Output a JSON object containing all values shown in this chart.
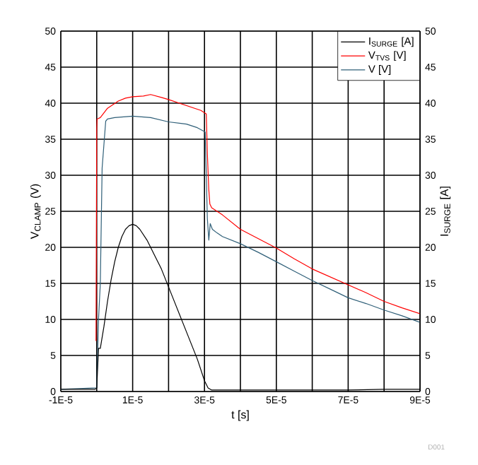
{
  "chart_data": {
    "type": "line",
    "xlabel": "t [s]",
    "ylabel": "V$_{CLAMP}$ (V)",
    "y2label": "I$_{SURGE}$ [A]",
    "annotations": [
      "D001"
    ],
    "xlim": [
      -1e-05,
      9e-05
    ],
    "ylim": [
      0,
      50
    ],
    "y2lim": [
      0,
      50
    ],
    "xticks": [
      {
        "value": -1e-05,
        "label": "-1E-5"
      },
      {
        "value": 0,
        "label": null
      },
      {
        "value": 1e-05,
        "label": "1E-5"
      },
      {
        "value": 2e-05,
        "label": null
      },
      {
        "value": 3e-05,
        "label": "3E-5"
      },
      {
        "value": 4e-05,
        "label": null
      },
      {
        "value": 5e-05,
        "label": "5E-5"
      },
      {
        "value": 6e-05,
        "label": null
      },
      {
        "value": 7e-05,
        "label": "7E-5"
      },
      {
        "value": 8e-05,
        "label": null
      },
      {
        "value": 9e-05,
        "label": "9E-5"
      }
    ],
    "yticks": [
      0,
      5,
      10,
      15,
      20,
      25,
      30,
      35,
      40,
      45,
      50
    ],
    "y2ticks": [
      0,
      5,
      10,
      15,
      20,
      25,
      30,
      35,
      40,
      45,
      50
    ],
    "grid": true,
    "legend": "top right",
    "line_style": "solid",
    "marker": "none",
    "series": [
      {
        "name": "I$_{SURGE}$ [A]",
        "color": "#000000",
        "axis": "y2",
        "x": [
          -1e-05,
          -5e-07,
          0,
          5e-07,
          1e-06,
          2e-06,
          3e-06,
          4e-06,
          5e-06,
          6e-06,
          7e-06,
          8e-06,
          9e-06,
          1e-05,
          1.1e-05,
          1.2e-05,
          1.4e-05,
          1.6e-05,
          1.8e-05,
          2e-05,
          2.2e-05,
          2.4e-05,
          2.6e-05,
          2.8e-05,
          3e-05,
          3.1e-05,
          3.2e-05,
          4e-05,
          5e-05,
          6e-05,
          7e-05,
          8e-05,
          9e-05
        ],
        "values": [
          0.3,
          0.3,
          0.5,
          6,
          6,
          9,
          12.5,
          15.5,
          18,
          20,
          21.5,
          22.5,
          23,
          23.2,
          23,
          22.5,
          21,
          19,
          17,
          14.5,
          12,
          9.5,
          7,
          4.5,
          1.5,
          0.5,
          0.2,
          0.2,
          0.2,
          0.2,
          0.2,
          0.3,
          0.3
        ]
      },
      {
        "name": "V$_{TVS}$ [V]",
        "color": "#ff0000",
        "x": [
          -2e-07,
          0,
          1e-07,
          1e-06,
          3e-06,
          6e-06,
          8e-06,
          1e-05,
          1.3e-05,
          1.5e-05,
          1.8e-05,
          2e-05,
          2.3e-05,
          2.6e-05,
          2.9e-05,
          3.05e-05,
          3.08e-05,
          3.12e-05,
          3.15e-05,
          3.2e-05,
          3.5e-05,
          4e-05,
          4.5e-05,
          5e-05,
          5.5e-05,
          6e-05,
          6.5e-05,
          7e-05,
          7.5e-05,
          8e-05,
          8.5e-05,
          9e-05
        ],
        "values": [
          7,
          36.5,
          37.8,
          38,
          39.3,
          40.3,
          40.7,
          40.9,
          41,
          41.2,
          40.8,
          40.5,
          40,
          39.5,
          39,
          38.5,
          33,
          28,
          26,
          25.5,
          24.5,
          22.5,
          21.2,
          19.9,
          18.4,
          17,
          15.9,
          14.8,
          13.7,
          12.5,
          11.6,
          10.8
        ]
      },
      {
        "name": "V [V]",
        "color": "#2f5f78",
        "x": [
          -1e-05,
          0,
          5e-07,
          1e-06,
          1.5e-06,
          2.5e-06,
          3e-06,
          5e-06,
          1e-05,
          1.5e-05,
          2e-05,
          2.5e-05,
          2.8e-05,
          3.02e-05,
          3.08e-05,
          3.12e-05,
          3.16e-05,
          3.22e-05,
          3.35e-05,
          3.5e-05,
          4e-05,
          4.5e-05,
          5e-05,
          5.5e-05,
          6e-05,
          6.5e-05,
          7e-05,
          7.5e-05,
          8e-05,
          8.5e-05,
          9e-05
        ],
        "values": [
          0.3,
          0.5,
          10,
          15,
          31,
          37.5,
          37.8,
          38,
          38.2,
          38,
          37.4,
          37.1,
          36.6,
          36,
          24,
          21,
          23.3,
          22.5,
          22,
          21.5,
          20.5,
          19.3,
          18,
          16.7,
          15.4,
          14.2,
          13,
          12.2,
          11.3,
          10.5,
          9.6
        ]
      }
    ]
  }
}
